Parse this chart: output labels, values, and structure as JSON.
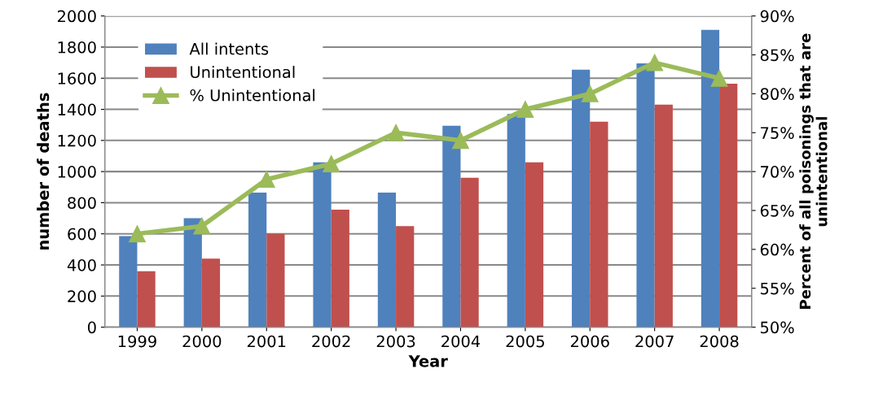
{
  "chart_data": {
    "type": "bar",
    "xlabel": "Year",
    "ylabel": "number of deaths",
    "y2label": "Percent of all poisonings that are unintentional",
    "categories": [
      "1999",
      "2000",
      "2001",
      "2002",
      "2003",
      "2004",
      "2005",
      "2006",
      "2007",
      "2008"
    ],
    "series": [
      {
        "name": "All intents",
        "color": "#4f81bd",
        "values": [
          585,
          700,
          865,
          1060,
          865,
          1295,
          1370,
          1655,
          1695,
          1910
        ]
      },
      {
        "name": "Unintentional",
        "color": "#c0504d",
        "values": [
          360,
          440,
          600,
          755,
          650,
          960,
          1060,
          1320,
          1430,
          1565
        ]
      },
      {
        "name": "% Unintentional",
        "type": "line",
        "axis": "y2",
        "color": "#9bbb59",
        "marker": "triangle",
        "values": [
          62,
          63,
          69,
          71,
          75,
          74,
          78,
          80,
          84,
          82
        ]
      }
    ],
    "ylim": [
      0,
      2000
    ],
    "yticks": [
      0,
      200,
      400,
      600,
      800,
      1000,
      1200,
      1400,
      1600,
      1800,
      2000
    ],
    "y2lim": [
      50,
      90
    ],
    "y2ticks": [
      {
        "value": 50,
        "label": "50%"
      },
      {
        "value": 55,
        "label": "55%"
      },
      {
        "value": 60,
        "label": "60%"
      },
      {
        "value": 65,
        "label": "65%"
      },
      {
        "value": 70,
        "label": "70%"
      },
      {
        "value": 75,
        "label": "75%"
      },
      {
        "value": 80,
        "label": "80%"
      },
      {
        "value": 85,
        "label": "85%"
      },
      {
        "value": 90,
        "label": "90%"
      }
    ],
    "grid": "y",
    "legend": "top left"
  }
}
